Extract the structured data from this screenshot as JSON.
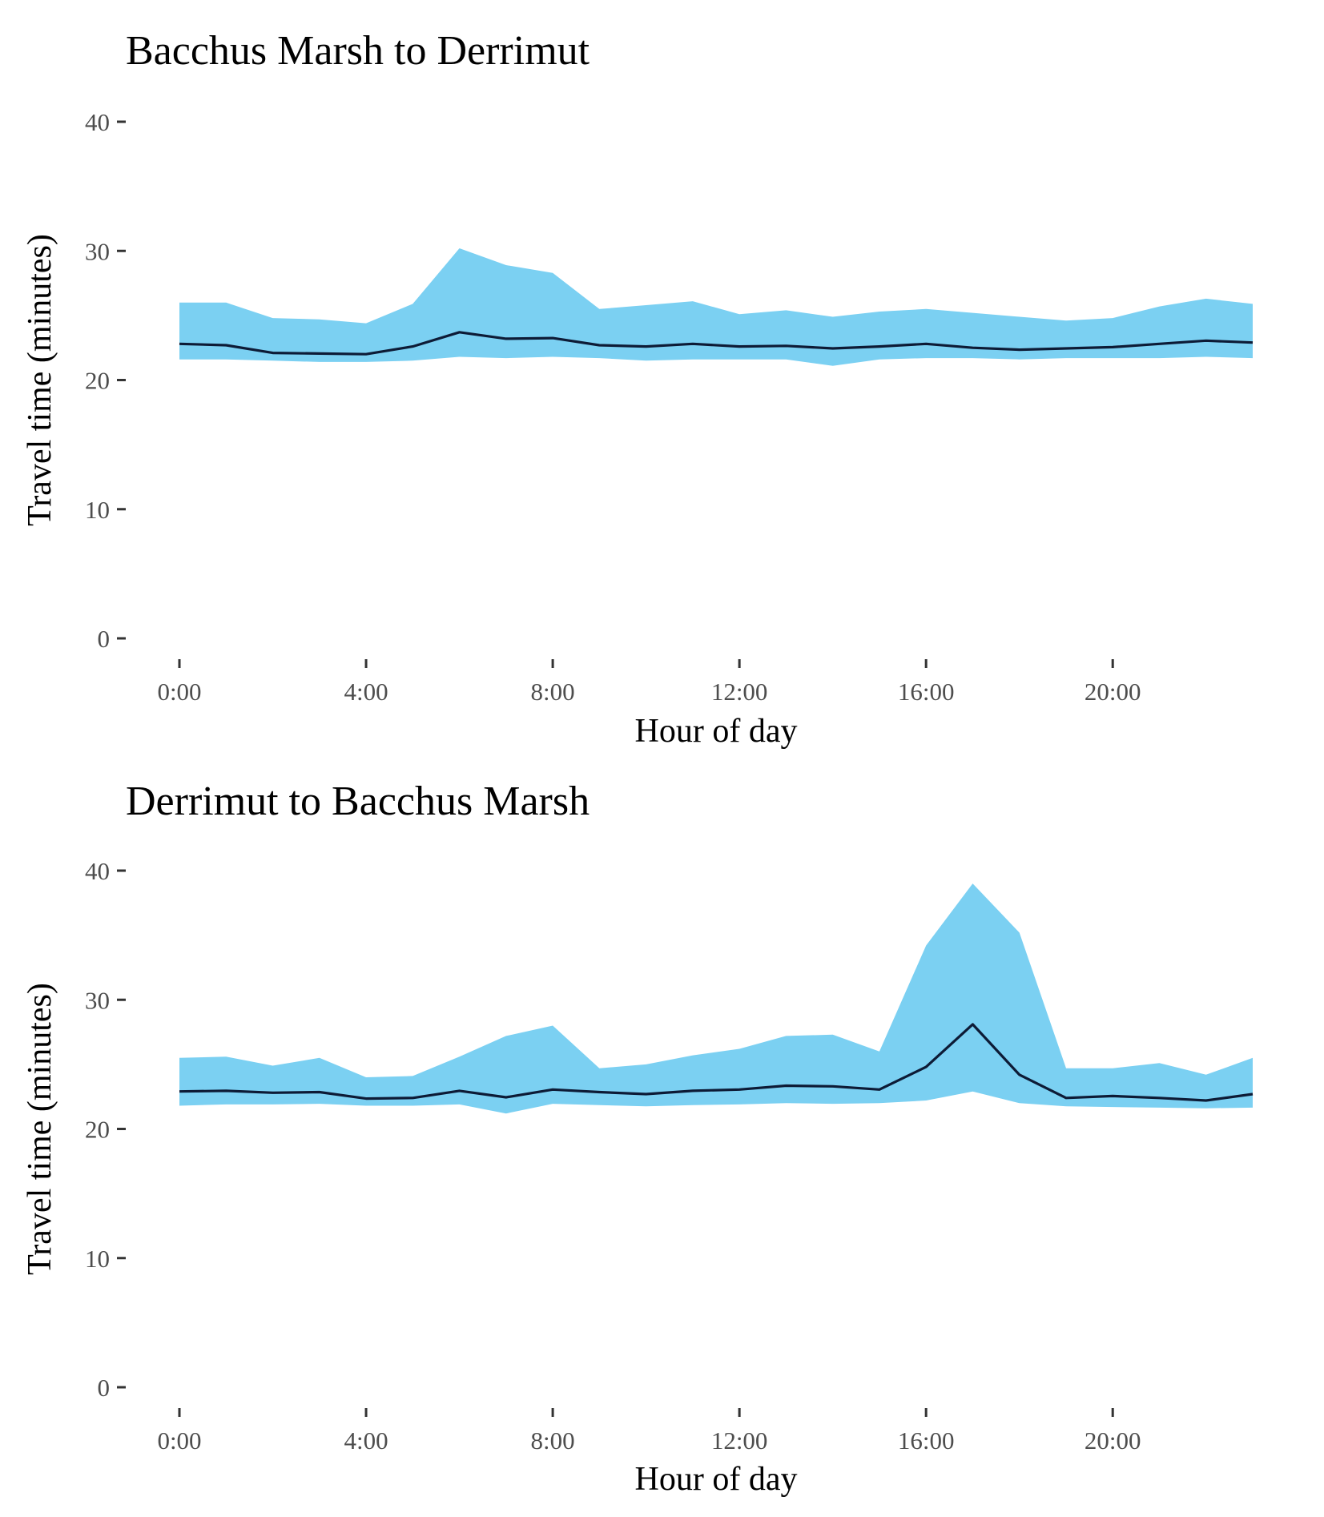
{
  "colors": {
    "band": "#7bd0f2",
    "median_line": "#0d1b36",
    "tick": "#333333",
    "tick_label": "#4d4d4d"
  },
  "chart_data": [
    {
      "type": "area",
      "title": "Bacchus Marsh to Derrimut",
      "xlabel": "Hour of day",
      "ylabel": "Travel time (minutes)",
      "ylim": [
        0,
        40
      ],
      "yticks": [
        0,
        10,
        20,
        30,
        40
      ],
      "xlim": [
        0,
        23
      ],
      "xticks": [
        0,
        4,
        8,
        12,
        16,
        20
      ],
      "xtick_labels": [
        "0:00",
        "4:00",
        "8:00",
        "12:00",
        "16:00",
        "20:00"
      ],
      "x": [
        0,
        1,
        2,
        3,
        4,
        5,
        6,
        7,
        8,
        9,
        10,
        11,
        12,
        13,
        14,
        15,
        16,
        17,
        18,
        19,
        20,
        21,
        22,
        23
      ],
      "series": [
        {
          "name": "upper",
          "values": [
            26.0,
            26.0,
            24.8,
            24.7,
            24.4,
            25.9,
            30.2,
            28.9,
            28.3,
            25.5,
            25.8,
            26.1,
            25.1,
            25.4,
            24.9,
            25.3,
            25.5,
            25.2,
            24.9,
            24.6,
            24.8,
            25.7,
            26.3,
            25.9
          ]
        },
        {
          "name": "median",
          "values": [
            22.8,
            22.7,
            22.1,
            22.05,
            22.0,
            22.6,
            23.7,
            23.2,
            23.25,
            22.7,
            22.6,
            22.8,
            22.6,
            22.65,
            22.45,
            22.6,
            22.8,
            22.5,
            22.35,
            22.45,
            22.55,
            22.8,
            23.05,
            22.9
          ]
        },
        {
          "name": "lower",
          "values": [
            21.6,
            21.6,
            21.5,
            21.4,
            21.4,
            21.5,
            21.8,
            21.7,
            21.8,
            21.7,
            21.5,
            21.6,
            21.6,
            21.6,
            21.1,
            21.6,
            21.7,
            21.7,
            21.6,
            21.7,
            21.7,
            21.7,
            21.8,
            21.7
          ]
        }
      ]
    },
    {
      "type": "area",
      "title": "Derrimut to Bacchus Marsh",
      "xlabel": "Hour of day",
      "ylabel": "Travel time (minutes)",
      "ylim": [
        0,
        40
      ],
      "yticks": [
        0,
        10,
        20,
        30,
        40
      ],
      "xlim": [
        0,
        23
      ],
      "xticks": [
        0,
        4,
        8,
        12,
        16,
        20
      ],
      "xtick_labels": [
        "0:00",
        "4:00",
        "8:00",
        "12:00",
        "16:00",
        "20:00"
      ],
      "x": [
        0,
        1,
        2,
        3,
        4,
        5,
        6,
        7,
        8,
        9,
        10,
        11,
        12,
        13,
        14,
        15,
        16,
        17,
        18,
        19,
        20,
        21,
        22,
        23
      ],
      "series": [
        {
          "name": "upper",
          "values": [
            25.5,
            25.6,
            24.9,
            25.5,
            24.0,
            24.1,
            25.6,
            27.2,
            28.0,
            24.7,
            25.0,
            25.7,
            26.2,
            27.2,
            27.3,
            26.0,
            34.2,
            39.0,
            35.2,
            24.7,
            24.7,
            25.1,
            24.2,
            25.5
          ]
        },
        {
          "name": "median",
          "values": [
            22.9,
            22.95,
            22.8,
            22.85,
            22.35,
            22.4,
            22.95,
            22.45,
            23.05,
            22.85,
            22.7,
            22.95,
            23.05,
            23.35,
            23.3,
            23.05,
            24.8,
            28.1,
            24.2,
            22.4,
            22.55,
            22.4,
            22.2,
            22.7
          ]
        },
        {
          "name": "lower",
          "values": [
            21.8,
            21.9,
            21.9,
            21.95,
            21.8,
            21.8,
            21.9,
            21.2,
            21.95,
            21.85,
            21.75,
            21.85,
            21.9,
            22.0,
            21.95,
            22.0,
            22.2,
            22.9,
            22.0,
            21.75,
            21.7,
            21.65,
            21.6,
            21.65
          ]
        }
      ]
    }
  ]
}
